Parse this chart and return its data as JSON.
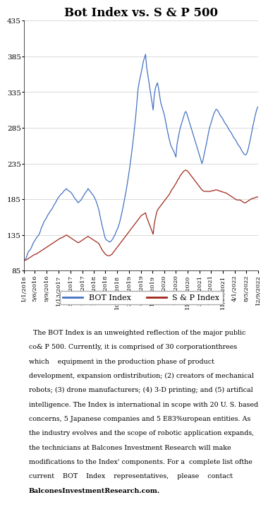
{
  "title": "Bot Index vs. S & P 500",
  "title_fontsize": 12,
  "bot_color": "#4472C4",
  "sp_color": "#A0281A",
  "ylim": [
    85,
    435
  ],
  "yticks": [
    85,
    135,
    185,
    235,
    285,
    335,
    385,
    435
  ],
  "background_text": "#D9E1F2",
  "legend_labels": [
    "BOT Index",
    "S & P Index"
  ],
  "description_lines": [
    "  The BOT Index is an unweighted reflection of the major public",
    "co& P 500. Currently, it is comprised of 30 corporationthrees",
    "which    equipment in the production phase of product",
    "development, expansion ordistribution; (2) creators of mechanical",
    "robots; (3) drone manufacturers; (4) 3-D printing; and (5) artifical",
    "intelligence. The Index is international in scope with 20 U. S. based",
    "concerns, 5 Japanese companies and 5 E83%uropean entities. As",
    "the industry evolves and the scope of robotic application expands,",
    "the technicians at Balcones Investment Research will make",
    "modifications to the Index' components. For a  complete list ofthe",
    "current    BOT    Index    representatives,    please    contact"
  ],
  "description_bold": "BalconesInvestmentResearch.com.",
  "xtick_labels": [
    "1/1/2016",
    "5/6/2016",
    "9/9/2016",
    "1/13/2017",
    "5/19/2017",
    "9/22/2017",
    "1/26/2018",
    "6/1/2018",
    "10/05/2018",
    "2/15/2019",
    "6/21/2019",
    "11/1/2019",
    "3/6/2020",
    "7/10/2020",
    "11/13/2020",
    "3/19/2021",
    "7/23/2021",
    "11/26/2021",
    "4/1/2022",
    "8/5/2022",
    "12/9/2022"
  ],
  "bot_values": [
    100,
    100,
    103,
    107,
    112,
    113,
    115,
    118,
    122,
    125,
    127,
    130,
    132,
    134,
    136,
    140,
    145,
    148,
    152,
    155,
    157,
    160,
    163,
    165,
    168,
    170,
    172,
    175,
    178,
    180,
    183,
    186,
    188,
    190,
    192,
    193,
    195,
    197,
    198,
    200,
    198,
    197,
    196,
    195,
    193,
    191,
    188,
    186,
    184,
    182,
    180,
    182,
    183,
    185,
    188,
    190,
    193,
    195,
    197,
    200,
    198,
    196,
    194,
    192,
    190,
    187,
    184,
    180,
    175,
    170,
    162,
    155,
    148,
    142,
    135,
    130,
    128,
    127,
    126,
    125,
    126,
    128,
    130,
    133,
    136,
    140,
    143,
    147,
    152,
    158,
    165,
    172,
    180,
    188,
    196,
    205,
    215,
    225,
    236,
    248,
    260,
    273,
    287,
    302,
    320,
    338,
    348,
    355,
    362,
    370,
    378,
    383,
    388,
    370,
    360,
    350,
    340,
    330,
    320,
    310,
    330,
    340,
    345,
    348,
    340,
    330,
    320,
    315,
    310,
    305,
    298,
    290,
    282,
    275,
    268,
    262,
    258,
    255,
    252,
    248,
    244,
    262,
    270,
    278,
    285,
    290,
    295,
    300,
    305,
    308,
    305,
    300,
    295,
    290,
    285,
    280,
    275,
    270,
    265,
    260,
    255,
    250,
    245,
    240,
    235,
    240,
    248,
    255,
    262,
    270,
    278,
    285,
    290,
    295,
    300,
    305,
    308,
    311,
    310,
    308,
    305,
    302,
    300,
    298,
    295,
    292,
    290,
    288,
    285,
    282,
    280,
    278,
    275,
    272,
    270,
    268,
    265,
    262,
    260,
    258,
    255,
    252,
    250,
    248,
    247,
    248,
    252,
    258,
    265,
    272,
    280,
    288,
    295,
    302,
    308,
    313,
    315
  ],
  "sp_values": [
    100,
    100,
    100,
    101,
    102,
    103,
    104,
    105,
    106,
    107,
    108,
    108,
    109,
    110,
    111,
    112,
    113,
    114,
    115,
    116,
    117,
    118,
    119,
    120,
    121,
    122,
    123,
    124,
    125,
    126,
    127,
    128,
    129,
    130,
    131,
    131,
    132,
    133,
    134,
    135,
    134,
    133,
    132,
    131,
    130,
    129,
    128,
    127,
    126,
    125,
    124,
    125,
    126,
    127,
    128,
    129,
    130,
    131,
    132,
    133,
    132,
    131,
    130,
    129,
    128,
    127,
    126,
    125,
    124,
    123,
    120,
    117,
    114,
    112,
    110,
    108,
    107,
    106,
    106,
    106,
    107,
    108,
    110,
    112,
    114,
    116,
    118,
    120,
    122,
    124,
    126,
    128,
    130,
    132,
    134,
    136,
    138,
    140,
    142,
    144,
    146,
    148,
    150,
    152,
    154,
    156,
    158,
    160,
    162,
    163,
    164,
    165,
    166,
    160,
    156,
    152,
    148,
    144,
    140,
    136,
    150,
    158,
    165,
    170,
    172,
    174,
    176,
    178,
    180,
    182,
    184,
    186,
    188,
    190,
    192,
    195,
    198,
    200,
    202,
    205,
    207,
    210,
    213,
    215,
    218,
    220,
    222,
    224,
    225,
    226,
    225,
    224,
    222,
    220,
    218,
    216,
    214,
    212,
    210,
    208,
    206,
    204,
    202,
    200,
    198,
    197,
    196,
    196,
    196,
    196,
    196,
    196,
    196,
    197,
    197,
    197,
    198,
    198,
    198,
    197,
    197,
    196,
    196,
    195,
    195,
    194,
    194,
    193,
    192,
    191,
    190,
    189,
    188,
    187,
    186,
    185,
    184,
    184,
    184,
    184,
    183,
    182,
    181,
    180,
    180,
    181,
    182,
    183,
    184,
    185,
    186,
    186,
    187,
    187,
    188,
    188,
    188
  ]
}
